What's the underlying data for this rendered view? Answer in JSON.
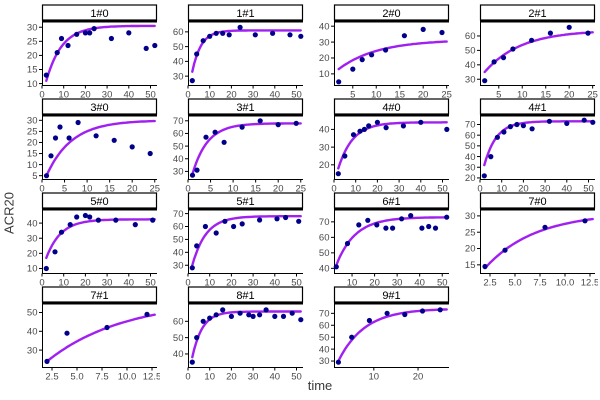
{
  "chart_data": {
    "type": "scatter",
    "layout": "facet-wrap 4x4, 15 panels",
    "title": "",
    "xlabel": "time",
    "ylabel": "ACR20",
    "grid": "off",
    "point_color": "#00008B",
    "curve_color": "#A020F0",
    "strip_bg": "#FFFFFF",
    "strip_border": "#000000",
    "tick_label_color": "#4a4a4a",
    "panels": [
      {
        "label": "1#0",
        "xlim": [
          0,
          53
        ],
        "ylim": [
          9.5,
          31.5
        ],
        "xticks": [
          0,
          10,
          20,
          30,
          40,
          50
        ],
        "xtick_labels": [
          "0",
          "10",
          "20",
          "30",
          "40",
          "50"
        ],
        "yticks": [
          10,
          15,
          20,
          25,
          30
        ],
        "points": [
          [
            2,
            13
          ],
          [
            7,
            21
          ],
          [
            9,
            26
          ],
          [
            12,
            23.5
          ],
          [
            16,
            27.5
          ],
          [
            20,
            28
          ],
          [
            22,
            28
          ],
          [
            24,
            29.5
          ],
          [
            32,
            26
          ],
          [
            40,
            28
          ],
          [
            48,
            22.5
          ],
          [
            52,
            23.5
          ]
        ],
        "curve": {
          "x0": 2,
          "y0": 11,
          "asym": 30.5,
          "k": 0.14
        }
      },
      {
        "label": "1#1",
        "xlim": [
          0,
          53
        ],
        "ylim": [
          24,
          66
        ],
        "xticks": [
          0,
          10,
          20,
          30,
          40,
          50
        ],
        "xtick_labels": [
          "0",
          "10",
          "20",
          "30",
          "40",
          "50"
        ],
        "yticks": [
          30,
          40,
          50,
          60
        ],
        "points": [
          [
            2,
            27
          ],
          [
            4,
            45
          ],
          [
            7,
            54
          ],
          [
            10,
            57
          ],
          [
            13,
            59
          ],
          [
            16,
            59
          ],
          [
            19,
            58
          ],
          [
            24,
            63
          ],
          [
            31,
            58
          ],
          [
            39,
            59
          ],
          [
            47,
            58
          ],
          [
            52,
            57
          ]
        ],
        "curve": {
          "x0": 2,
          "y0": 33,
          "asym": 61,
          "k": 0.25
        }
      },
      {
        "label": "2#0",
        "xlim": [
          1,
          25.5
        ],
        "ylim": [
          3,
          42
        ],
        "xticks": [
          5,
          10,
          15,
          20,
          25
        ],
        "xtick_labels": [
          "5",
          "10",
          "15",
          "20",
          "25"
        ],
        "yticks": [
          10,
          20,
          30,
          40
        ],
        "points": [
          [
            2,
            5
          ],
          [
            5,
            13
          ],
          [
            7,
            19
          ],
          [
            9,
            22
          ],
          [
            12,
            25
          ],
          [
            16,
            34
          ],
          [
            20,
            38
          ],
          [
            24,
            36
          ]
        ],
        "curve": {
          "x0": 2,
          "y0": 13,
          "asym": 31.5,
          "k": 0.12
        }
      },
      {
        "label": "2#1",
        "xlim": [
          1,
          25.5
        ],
        "ylim": [
          26,
          69
        ],
        "xticks": [
          5,
          10,
          15,
          20,
          25
        ],
        "xtick_labels": [
          "5",
          "10",
          "15",
          "20",
          "25"
        ],
        "yticks": [
          30,
          40,
          50,
          60
        ],
        "points": [
          [
            2,
            29
          ],
          [
            4,
            42
          ],
          [
            6,
            45
          ],
          [
            8,
            51
          ],
          [
            12,
            57
          ],
          [
            16,
            62
          ],
          [
            20,
            66
          ],
          [
            24,
            62
          ]
        ],
        "curve": {
          "x0": 2,
          "y0": 35,
          "asym": 64,
          "k": 0.13
        }
      },
      {
        "label": "3#0",
        "xlim": [
          0,
          25.5
        ],
        "ylim": [
          3.5,
          31.5
        ],
        "xticks": [
          0,
          5,
          10,
          15,
          20,
          25
        ],
        "xtick_labels": [
          "0",
          "5",
          "10",
          "15",
          "20",
          "25"
        ],
        "yticks": [
          5,
          10,
          15,
          20,
          25,
          30
        ],
        "points": [
          [
            1,
            5
          ],
          [
            2,
            14
          ],
          [
            3,
            22
          ],
          [
            4,
            27
          ],
          [
            6,
            22
          ],
          [
            8,
            29
          ],
          [
            12,
            23
          ],
          [
            16,
            21
          ],
          [
            20,
            18
          ],
          [
            24,
            15
          ]
        ],
        "curve": {
          "x0": 1,
          "y0": 5,
          "asym": 30,
          "k": 0.18
        }
      },
      {
        "label": "3#1",
        "xlim": [
          0,
          25.5
        ],
        "ylim": [
          24,
          73
        ],
        "xticks": [
          0,
          5,
          10,
          15,
          20,
          25
        ],
        "xtick_labels": [
          "0",
          "5",
          "10",
          "15",
          "20",
          "25"
        ],
        "yticks": [
          30,
          40,
          50,
          60,
          70
        ],
        "points": [
          [
            1,
            27
          ],
          [
            2,
            31
          ],
          [
            4,
            57
          ],
          [
            6,
            61
          ],
          [
            8,
            53
          ],
          [
            12,
            65
          ],
          [
            16,
            70
          ],
          [
            20,
            67
          ],
          [
            24,
            68
          ]
        ],
        "curve": {
          "x0": 1,
          "y0": 28,
          "asym": 68,
          "k": 0.3
        }
      },
      {
        "label": "4#0",
        "xlim": [
          0,
          53
        ],
        "ylim": [
          12,
          47
        ],
        "xticks": [
          0,
          10,
          20,
          30,
          40,
          50
        ],
        "xtick_labels": [
          "0",
          "10",
          "20",
          "30",
          "40",
          "50"
        ],
        "yticks": [
          20,
          30,
          40
        ],
        "points": [
          [
            2,
            15
          ],
          [
            5,
            25
          ],
          [
            9,
            37
          ],
          [
            12,
            39
          ],
          [
            14,
            40
          ],
          [
            16,
            42
          ],
          [
            20,
            44
          ],
          [
            24,
            41
          ],
          [
            32,
            42
          ],
          [
            40,
            44
          ],
          [
            52,
            40
          ]
        ],
        "curve": {
          "x0": 2,
          "y0": 18,
          "asym": 44,
          "k": 0.15
        }
      },
      {
        "label": "4#1",
        "xlim": [
          0,
          53
        ],
        "ylim": [
          19,
          77
        ],
        "xticks": [
          0,
          10,
          20,
          30,
          40,
          50
        ],
        "xtick_labels": [
          "0",
          "10",
          "20",
          "30",
          "40",
          "50"
        ],
        "yticks": [
          20,
          30,
          40,
          50,
          60,
          70
        ],
        "points": [
          [
            2,
            22
          ],
          [
            5,
            40
          ],
          [
            8,
            58
          ],
          [
            11,
            63
          ],
          [
            14,
            68
          ],
          [
            17,
            70
          ],
          [
            20,
            69
          ],
          [
            24,
            66
          ],
          [
            32,
            73
          ],
          [
            40,
            71
          ],
          [
            48,
            74
          ],
          [
            52,
            72
          ]
        ],
        "curve": {
          "x0": 2,
          "y0": 32,
          "asym": 73,
          "k": 0.18
        }
      },
      {
        "label": "5#0",
        "xlim": [
          0,
          53
        ],
        "ylim": [
          7,
          48
        ],
        "xticks": [
          0,
          10,
          20,
          30,
          40,
          50
        ],
        "xtick_labels": [
          "0",
          "10",
          "20",
          "30",
          "40",
          "50"
        ],
        "yticks": [
          10,
          20,
          30,
          40
        ],
        "points": [
          [
            2,
            10
          ],
          [
            6,
            21
          ],
          [
            9,
            34
          ],
          [
            13,
            39
          ],
          [
            16,
            44
          ],
          [
            20,
            45
          ],
          [
            22,
            44
          ],
          [
            26,
            42
          ],
          [
            34,
            42
          ],
          [
            43,
            39
          ],
          [
            51,
            42
          ]
        ],
        "curve": {
          "x0": 2,
          "y0": 17,
          "asym": 42.5,
          "k": 0.15
        }
      },
      {
        "label": "5#1",
        "xlim": [
          0,
          53
        ],
        "ylim": [
          24,
          72
        ],
        "xticks": [
          0,
          10,
          20,
          30,
          40,
          50
        ],
        "xtick_labels": [
          "0",
          "10",
          "20",
          "30",
          "40",
          "50"
        ],
        "yticks": [
          30,
          40,
          50,
          60,
          70
        ],
        "points": [
          [
            2,
            28
          ],
          [
            4,
            45
          ],
          [
            8,
            60
          ],
          [
            13,
            55
          ],
          [
            17,
            64
          ],
          [
            21,
            60
          ],
          [
            25,
            62
          ],
          [
            33,
            65
          ],
          [
            41,
            66
          ],
          [
            45,
            67
          ],
          [
            51,
            64
          ]
        ],
        "curve": {
          "x0": 2,
          "y0": 30,
          "asym": 68,
          "k": 0.16
        }
      },
      {
        "label": "6#1",
        "xlim": [
          2,
          53
        ],
        "ylim": [
          37,
          77
        ],
        "xticks": [
          10,
          20,
          30,
          40,
          50
        ],
        "xtick_labels": [
          "10",
          "20",
          "30",
          "40",
          "50"
        ],
        "yticks": [
          40,
          50,
          60,
          70
        ],
        "points": [
          [
            3,
            41
          ],
          [
            8,
            56
          ],
          [
            13,
            68
          ],
          [
            17,
            71
          ],
          [
            21,
            68
          ],
          [
            25,
            66
          ],
          [
            28,
            66
          ],
          [
            32,
            72
          ],
          [
            36,
            74
          ],
          [
            41,
            66
          ],
          [
            44,
            67
          ],
          [
            47,
            66
          ],
          [
            52,
            73
          ]
        ],
        "curve": {
          "x0": 3,
          "y0": 42,
          "asym": 73,
          "k": 0.12
        }
      },
      {
        "label": "7#0",
        "xlim": [
          1.5,
          13
        ],
        "ylim": [
          12.5,
          31.5
        ],
        "xticks": [
          2.5,
          5,
          7.5,
          10,
          12.5
        ],
        "xtick_labels": [
          "2.5",
          "5.0",
          "7.5",
          "10.0",
          "12.5"
        ],
        "yticks": [
          15,
          20,
          25,
          30
        ],
        "points": [
          [
            2,
            14.5
          ],
          [
            4,
            19.5
          ],
          [
            8,
            26.5
          ],
          [
            12,
            28.5
          ]
        ],
        "curve": {
          "x0": 2,
          "y0": 14,
          "asym": 31,
          "k": 0.2
        }
      },
      {
        "label": "7#1",
        "xlim": [
          1.5,
          13
        ],
        "ylim": [
          21,
          54
        ],
        "xticks": [
          2.5,
          5,
          7.5,
          10,
          12.5
        ],
        "xtick_labels": [
          "2.5",
          "5.0",
          "7.5",
          "10.0",
          "12.5"
        ],
        "yticks": [
          30,
          40,
          50
        ],
        "points": [
          [
            2,
            24
          ],
          [
            4,
            39
          ],
          [
            8,
            42
          ],
          [
            12,
            49
          ]
        ],
        "curve": {
          "x0": 2,
          "y0": 24,
          "asym": 57,
          "k": 0.13
        }
      },
      {
        "label": "8#1",
        "xlim": [
          0,
          53
        ],
        "ylim": [
          32,
          70
        ],
        "xticks": [
          0,
          10,
          20,
          30,
          40,
          50
        ],
        "xtick_labels": [
          "0",
          "10",
          "20",
          "30",
          "40",
          "50"
        ],
        "yticks": [
          40,
          50,
          60
        ],
        "points": [
          [
            2,
            35
          ],
          [
            4,
            50
          ],
          [
            7,
            60
          ],
          [
            10,
            62
          ],
          [
            13,
            64
          ],
          [
            16,
            67
          ],
          [
            20,
            63
          ],
          [
            24,
            65
          ],
          [
            28,
            64
          ],
          [
            30,
            63
          ],
          [
            33,
            64
          ],
          [
            36,
            67
          ],
          [
            40,
            63
          ],
          [
            44,
            63
          ],
          [
            48,
            65
          ],
          [
            52,
            61
          ]
        ],
        "curve": {
          "x0": 2,
          "y0": 38,
          "asym": 66,
          "k": 0.22
        }
      },
      {
        "label": "9#1",
        "xlim": [
          1,
          27
        ],
        "ylim": [
          25,
          77
        ],
        "xticks": [
          10,
          20
        ],
        "xtick_labels": [
          "10",
          "20"
        ],
        "yticks": [
          30,
          40,
          50,
          60,
          70
        ],
        "points": [
          [
            2,
            29
          ],
          [
            5,
            50
          ],
          [
            9,
            64
          ],
          [
            13,
            70
          ],
          [
            17,
            69
          ],
          [
            21,
            72
          ],
          [
            25,
            73
          ]
        ],
        "curve": {
          "x0": 2,
          "y0": 30,
          "asym": 74,
          "k": 0.17
        }
      }
    ]
  }
}
